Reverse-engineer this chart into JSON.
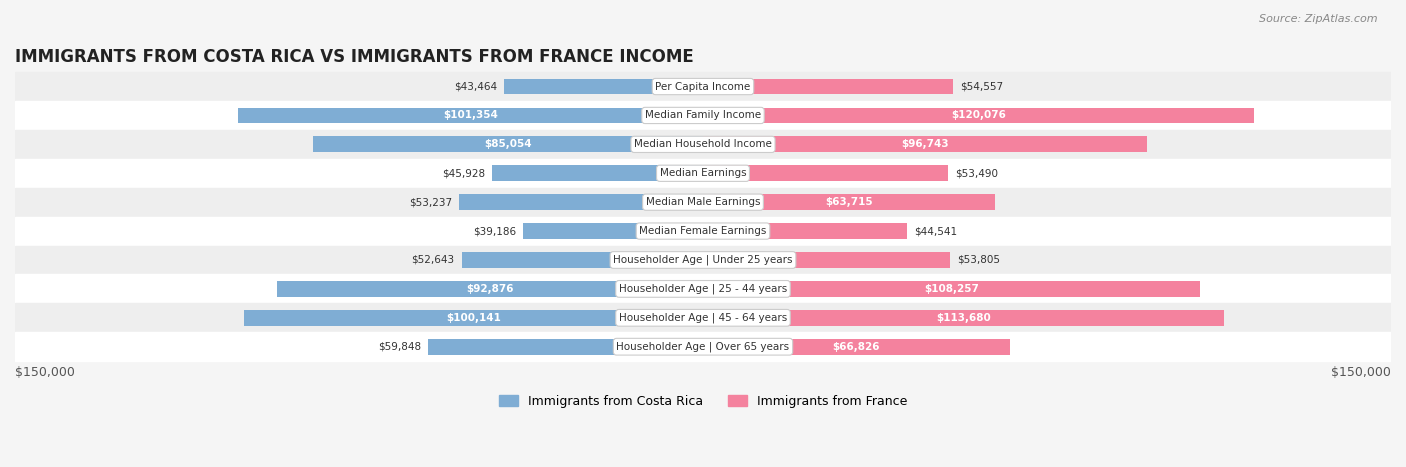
{
  "title": "IMMIGRANTS FROM COSTA RICA VS IMMIGRANTS FROM FRANCE INCOME",
  "source": "Source: ZipAtlas.com",
  "categories": [
    "Per Capita Income",
    "Median Family Income",
    "Median Household Income",
    "Median Earnings",
    "Median Male Earnings",
    "Median Female Earnings",
    "Householder Age | Under 25 years",
    "Householder Age | 25 - 44 years",
    "Householder Age | 45 - 64 years",
    "Householder Age | Over 65 years"
  ],
  "costa_rica_values": [
    43464,
    101354,
    85054,
    45928,
    53237,
    39186,
    52643,
    92876,
    100141,
    59848
  ],
  "france_values": [
    54557,
    120076,
    96743,
    53490,
    63715,
    44541,
    53805,
    108257,
    113680,
    66826
  ],
  "costa_rica_labels": [
    "$43,464",
    "$101,354",
    "$85,054",
    "$45,928",
    "$53,237",
    "$39,186",
    "$52,643",
    "$92,876",
    "$100,141",
    "$59,848"
  ],
  "france_labels": [
    "$54,557",
    "$120,076",
    "$96,743",
    "$53,490",
    "$63,715",
    "$44,541",
    "$53,805",
    "$108,257",
    "$113,680",
    "$66,826"
  ],
  "color_costa_rica": "#7fadd4",
  "color_france": "#f4829e",
  "color_costa_rica_dark": "#5b8fc7",
  "color_france_dark": "#f05a84",
  "max_value": 150000,
  "background_color": "#f5f5f5",
  "row_bg_odd": "#ffffff",
  "row_bg_even": "#eeeeee",
  "label_color_dark": "#333333",
  "label_color_white": "#ffffff",
  "legend_cr": "Immigrants from Costa Rica",
  "legend_fr": "Immigrants from France",
  "axis_label": "$150,000"
}
